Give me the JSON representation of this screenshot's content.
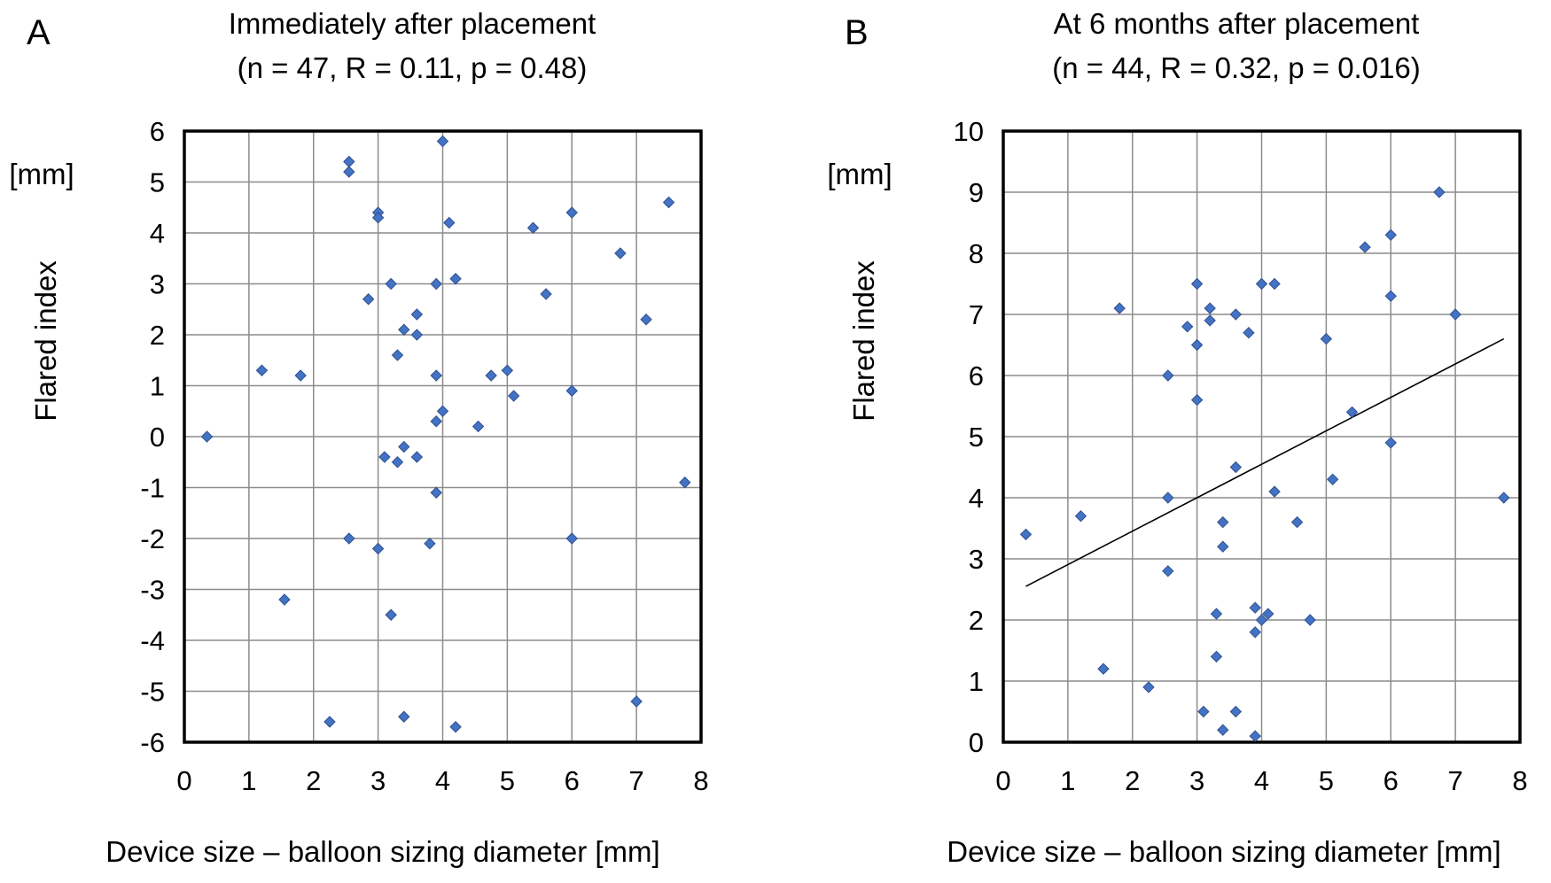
{
  "chart_data": [
    {
      "panel_label": "A",
      "type": "scatter",
      "title": "Immediately after placement",
      "subtitle": "(n = 47, R = 0.11, p = 0.48)",
      "xlabel": "Device size – balloon sizing diameter  [mm]",
      "ylabel": "Flared index",
      "yunit": "[mm]",
      "xlim": [
        0,
        8
      ],
      "ylim": [
        -6,
        6
      ],
      "xticks": [
        0,
        1,
        2,
        3,
        4,
        5,
        6,
        7,
        8
      ],
      "yticks": [
        6,
        5,
        4,
        3,
        2,
        1,
        0,
        -1,
        -2,
        -3,
        -4,
        -5,
        -6
      ],
      "grid": true,
      "marker_color": "#4472C4",
      "points": [
        [
          0.35,
          0
        ],
        [
          1.2,
          1.3
        ],
        [
          1.55,
          -3.2
        ],
        [
          1.8,
          1.2
        ],
        [
          2.25,
          -5.6
        ],
        [
          2.55,
          5.4
        ],
        [
          2.55,
          5.2
        ],
        [
          2.55,
          -2.0
        ],
        [
          2.85,
          2.7
        ],
        [
          3.0,
          4.4
        ],
        [
          3.0,
          4.3
        ],
        [
          3.0,
          -2.2
        ],
        [
          3.1,
          -0.4
        ],
        [
          3.2,
          3.0
        ],
        [
          3.2,
          -3.5
        ],
        [
          3.3,
          1.6
        ],
        [
          3.3,
          -0.5
        ],
        [
          3.4,
          2.1
        ],
        [
          3.4,
          -0.2
        ],
        [
          3.4,
          -5.5
        ],
        [
          3.6,
          2.4
        ],
        [
          3.6,
          2.0
        ],
        [
          3.6,
          -0.4
        ],
        [
          3.8,
          -2.1
        ],
        [
          3.9,
          3.0
        ],
        [
          3.9,
          1.2
        ],
        [
          3.9,
          0.3
        ],
        [
          3.9,
          -1.1
        ],
        [
          4.0,
          5.8
        ],
        [
          4.0,
          0.5
        ],
        [
          4.1,
          4.2
        ],
        [
          4.2,
          3.1
        ],
        [
          4.2,
          -5.7
        ],
        [
          4.55,
          0.2
        ],
        [
          4.75,
          1.2
        ],
        [
          5.0,
          1.3
        ],
        [
          5.1,
          0.8
        ],
        [
          5.4,
          4.1
        ],
        [
          5.6,
          2.8
        ],
        [
          6.0,
          4.4
        ],
        [
          6.0,
          0.9
        ],
        [
          6.0,
          -2.0
        ],
        [
          6.75,
          3.6
        ],
        [
          7.0,
          -5.2
        ],
        [
          7.15,
          2.3
        ],
        [
          7.5,
          4.6
        ],
        [
          7.75,
          -0.9
        ]
      ]
    },
    {
      "panel_label": "B",
      "type": "scatter",
      "title": "At 6 months after placement",
      "subtitle": "(n = 44, R = 0.32, p = 0.016)",
      "xlabel": "Device size – balloon sizing diameter  [mm]",
      "ylabel": "Flared index",
      "yunit": "[mm]",
      "xlim": [
        0,
        8
      ],
      "ylim": [
        0,
        10
      ],
      "xticks": [
        0,
        1,
        2,
        3,
        4,
        5,
        6,
        7,
        8
      ],
      "yticks": [
        10,
        9,
        8,
        7,
        6,
        5,
        4,
        3,
        2,
        1,
        0
      ],
      "grid": true,
      "marker_color": "#4472C4",
      "trendline": [
        [
          0.35,
          2.55
        ],
        [
          7.75,
          6.6
        ]
      ],
      "points": [
        [
          0.35,
          3.4
        ],
        [
          1.2,
          3.7
        ],
        [
          1.55,
          1.2
        ],
        [
          1.8,
          7.1
        ],
        [
          2.25,
          0.9
        ],
        [
          2.55,
          6.0
        ],
        [
          2.55,
          4.0
        ],
        [
          2.55,
          2.8
        ],
        [
          2.85,
          6.8
        ],
        [
          3.0,
          7.5
        ],
        [
          3.0,
          6.5
        ],
        [
          3.0,
          5.6
        ],
        [
          3.1,
          0.5
        ],
        [
          3.2,
          7.1
        ],
        [
          3.2,
          6.9
        ],
        [
          3.3,
          2.1
        ],
        [
          3.3,
          1.4
        ],
        [
          3.4,
          3.6
        ],
        [
          3.4,
          3.2
        ],
        [
          3.4,
          0.2
        ],
        [
          3.6,
          7.0
        ],
        [
          3.6,
          4.5
        ],
        [
          3.6,
          0.5
        ],
        [
          3.8,
          6.7
        ],
        [
          3.9,
          2.2
        ],
        [
          3.9,
          1.8
        ],
        [
          3.9,
          0.1
        ],
        [
          4.0,
          7.5
        ],
        [
          4.0,
          2.0
        ],
        [
          4.1,
          2.1
        ],
        [
          4.2,
          7.5
        ],
        [
          4.2,
          4.1
        ],
        [
          4.55,
          3.6
        ],
        [
          4.75,
          2.0
        ],
        [
          5.0,
          6.6
        ],
        [
          5.1,
          4.3
        ],
        [
          5.4,
          5.4
        ],
        [
          5.6,
          8.1
        ],
        [
          6.0,
          8.3
        ],
        [
          6.0,
          7.3
        ],
        [
          6.0,
          4.9
        ],
        [
          6.75,
          9.0
        ],
        [
          7.0,
          7.0
        ],
        [
          7.75,
          4.0
        ]
      ]
    }
  ]
}
